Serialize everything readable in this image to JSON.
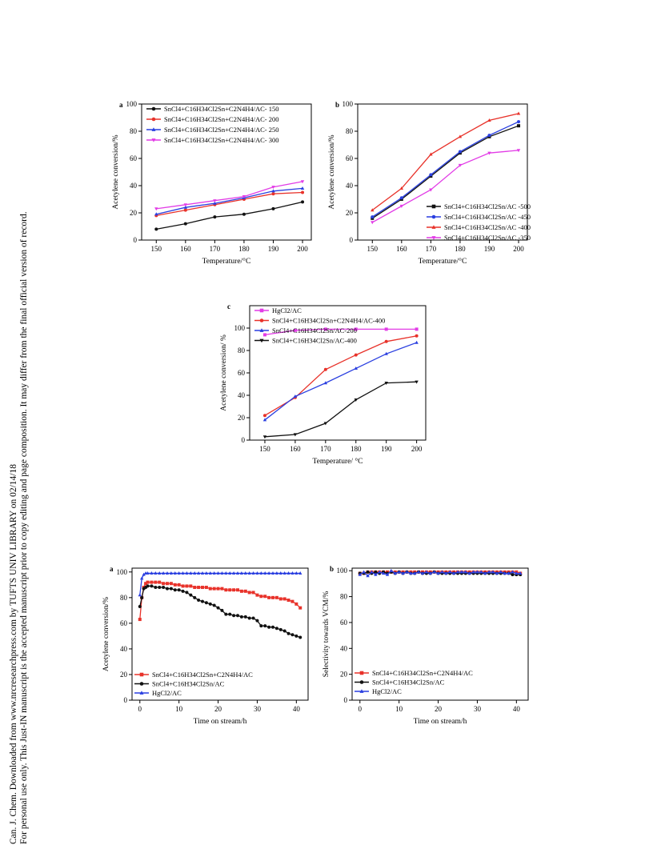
{
  "watermark": {
    "line1": "Can. J. Chem. Downloaded from www.nrcresearchpress.com by TUFTS UNIV LIBRARY on 02/14/18",
    "line2": "For personal use only. This Just-IN manuscript is the accepted manuscript prior to copy editing and page composition. It may differ from the final official version of record."
  },
  "colors": {
    "black": "#111111",
    "red": "#e8322a",
    "blue": "#2a3fe0",
    "magenta": "#e23ce6",
    "navy": "#1b1f8c"
  },
  "chart_data": [
    {
      "id": "fig1a",
      "panel_label": "a",
      "type": "line",
      "xlabel": "Temperature/°C",
      "ylabel": "Acetylene conversion/%",
      "xlim": [
        145,
        203
      ],
      "ylim": [
        0,
        100
      ],
      "xticks": [
        150,
        160,
        170,
        180,
        190,
        200
      ],
      "yticks": [
        0,
        20,
        40,
        60,
        80,
        100
      ],
      "legend_position": "top-left",
      "x": [
        150,
        160,
        170,
        180,
        190,
        200
      ],
      "series": [
        {
          "name": "SnCl4+C16H34Cl2Sn+C2N4H4/AC- 150",
          "color": "#111111",
          "marker": "circle",
          "values": [
            8,
            12,
            17,
            19,
            23,
            28
          ]
        },
        {
          "name": "SnCl4+C16H34Cl2Sn+C2N4H4/AC- 200",
          "color": "#e8322a",
          "marker": "circle",
          "values": [
            18,
            22,
            26,
            30,
            34,
            35
          ]
        },
        {
          "name": "SnCl4+C16H34Cl2Sn+C2N4H4/AC- 250",
          "color": "#2a3fe0",
          "marker": "triangle",
          "values": [
            19,
            24,
            27,
            31,
            36,
            38
          ]
        },
        {
          "name": "SnCl4+C16H34Cl2Sn+C2N4H4/AC- 300",
          "color": "#e23ce6",
          "marker": "triangle-down",
          "values": [
            23,
            26,
            29,
            32,
            39,
            43
          ]
        }
      ]
    },
    {
      "id": "fig1b",
      "panel_label": "b",
      "type": "line",
      "xlabel": "Temperature/°C",
      "ylabel": "Acetylene conversion/%",
      "xlim": [
        145,
        203
      ],
      "ylim": [
        0,
        100
      ],
      "xticks": [
        150,
        160,
        170,
        180,
        190,
        200
      ],
      "yticks": [
        0,
        20,
        40,
        60,
        80,
        100
      ],
      "legend_position": "bottom-right",
      "x": [
        150,
        160,
        170,
        180,
        190,
        200
      ],
      "series": [
        {
          "name": "SnCl4+C16H34Cl2Sn/AC -500",
          "color": "#111111",
          "marker": "square",
          "values": [
            16,
            30,
            47,
            64,
            76,
            84
          ]
        },
        {
          "name": "SnCl4+C16H34Cl2Sn/AC -450",
          "color": "#2a3fe0",
          "marker": "circle",
          "values": [
            17,
            31,
            48,
            65,
            77,
            87
          ]
        },
        {
          "name": "SnCl4+C16H34Cl2Sn/AC -400",
          "color": "#e8322a",
          "marker": "triangle",
          "values": [
            22,
            38,
            63,
            76,
            88,
            93
          ]
        },
        {
          "name": "SnCl4+C16H34Cl2Sn/AC -350",
          "color": "#e23ce6",
          "marker": "triangle-down",
          "values": [
            13,
            25,
            37,
            55,
            64,
            66
          ]
        }
      ]
    },
    {
      "id": "fig1c",
      "panel_label": "c",
      "type": "line",
      "xlabel": "Temperature/ °C",
      "ylabel": "Acetylene conversion/ %",
      "xlim": [
        145,
        203
      ],
      "ylim": [
        0,
        120
      ],
      "xticks": [
        150,
        160,
        170,
        180,
        190,
        200
      ],
      "yticks": [
        0,
        20,
        40,
        60,
        80,
        100
      ],
      "legend_position": "top-left",
      "x": [
        150,
        160,
        170,
        180,
        190,
        200
      ],
      "series": [
        {
          "name": "HgCl2/AC",
          "color": "#e23ce6",
          "marker": "square",
          "values": [
            94,
            98,
            99,
            99,
            99,
            99
          ]
        },
        {
          "name": "SnCl4+C16H34Cl2Sn+C2N4H4/AC-400",
          "color": "#e8322a",
          "marker": "circle",
          "values": [
            22,
            38,
            63,
            76,
            88,
            93
          ]
        },
        {
          "name": "SnCl4+C16H34Cl2Sn/AC-200",
          "color": "#2a3fe0",
          "marker": "triangle",
          "values": [
            18,
            39,
            51,
            64,
            77,
            87
          ]
        },
        {
          "name": "SnCl4+C16H34Cl2Sn/AC-400",
          "color": "#111111",
          "marker": "triangle-down",
          "values": [
            3,
            5,
            15,
            36,
            51,
            52
          ]
        }
      ]
    },
    {
      "id": "fig2a",
      "panel_label": "a",
      "type": "line",
      "xlabel": "Time on stream/h",
      "ylabel": "Acetylene conversion/%",
      "xlim": [
        -2,
        43
      ],
      "ylim": [
        0,
        103
      ],
      "xticks": [
        0,
        10,
        20,
        30,
        40
      ],
      "yticks": [
        0,
        20,
        40,
        60,
        80,
        100
      ],
      "legend_position": "bottom-left",
      "series": [
        {
          "name": "SnCl4+C16H34Cl2Sn+C2N4H4/AC",
          "color": "#e8322a",
          "marker": "square",
          "x": [
            0,
            0.5,
            1,
            1.5,
            2,
            3,
            4,
            5,
            6,
            7,
            8,
            9,
            10,
            11,
            12,
            13,
            14,
            15,
            16,
            17,
            18,
            19,
            20,
            21,
            22,
            23,
            24,
            25,
            26,
            27,
            28,
            29,
            30,
            31,
            32,
            33,
            34,
            35,
            36,
            37,
            38,
            39,
            40,
            41
          ],
          "values": [
            63,
            80,
            88,
            91,
            92,
            92,
            92,
            92,
            91,
            91,
            91,
            90,
            90,
            89,
            89,
            89,
            88,
            88,
            88,
            88,
            87,
            87,
            87,
            87,
            86,
            86,
            86,
            86,
            85,
            85,
            84,
            84,
            82,
            81,
            81,
            80,
            80,
            80,
            79,
            79,
            78,
            77,
            75,
            72
          ]
        },
        {
          "name": "SnCl4+C16H34Cl2Sn/AC",
          "color": "#111111",
          "marker": "circle",
          "x": [
            0,
            0.5,
            1,
            1.5,
            2,
            3,
            4,
            5,
            6,
            7,
            8,
            9,
            10,
            11,
            12,
            13,
            14,
            15,
            16,
            17,
            18,
            19,
            20,
            21,
            22,
            23,
            24,
            25,
            26,
            27,
            28,
            29,
            30,
            31,
            32,
            33,
            34,
            35,
            36,
            37,
            38,
            39,
            40,
            41
          ],
          "values": [
            73,
            80,
            87,
            88,
            89,
            89,
            88,
            88,
            88,
            87,
            87,
            86,
            86,
            85,
            84,
            82,
            80,
            78,
            77,
            76,
            75,
            74,
            72,
            70,
            67,
            67,
            66,
            66,
            65,
            65,
            64,
            64,
            62,
            58,
            58,
            57,
            57,
            56,
            55,
            54,
            52,
            51,
            50,
            49
          ]
        },
        {
          "name": "HgCl2/AC",
          "color": "#2a3fe0",
          "marker": "triangle",
          "x": [
            0,
            0.5,
            1,
            1.5,
            2,
            3,
            4,
            5,
            6,
            7,
            8,
            9,
            10,
            11,
            12,
            13,
            14,
            15,
            16,
            17,
            18,
            19,
            20,
            21,
            22,
            23,
            24,
            25,
            26,
            27,
            28,
            29,
            30,
            31,
            32,
            33,
            34,
            35,
            36,
            37,
            38,
            39,
            40,
            41
          ],
          "values": [
            82,
            95,
            98,
            99,
            99,
            99,
            99,
            99,
            99,
            99,
            99,
            99,
            99,
            99,
            99,
            99,
            99,
            99,
            99,
            99,
            99,
            99,
            99,
            99,
            99,
            99,
            99,
            99,
            99,
            99,
            99,
            99,
            99,
            99,
            99,
            99,
            99,
            99,
            99,
            99,
            99,
            99,
            99,
            99
          ]
        }
      ]
    },
    {
      "id": "fig2b",
      "panel_label": "b",
      "type": "line",
      "xlabel": "Time on stream/h",
      "ylabel": "Selectivity towards VCM/%",
      "xlim": [
        -2,
        43
      ],
      "ylim": [
        0,
        102
      ],
      "xticks": [
        0,
        10,
        20,
        30,
        40
      ],
      "yticks": [
        0,
        20,
        40,
        60,
        80,
        100
      ],
      "legend_position": "bottom-left",
      "series": [
        {
          "name": "SnCl4+C16H34Cl2Sn+C2N4H4/AC",
          "color": "#e8322a",
          "marker": "square",
          "x": [
            0,
            1,
            2,
            3,
            4,
            5,
            6,
            7,
            8,
            9,
            10,
            11,
            12,
            13,
            14,
            15,
            16,
            17,
            18,
            19,
            20,
            21,
            22,
            23,
            24,
            25,
            26,
            27,
            28,
            29,
            30,
            31,
            32,
            33,
            34,
            35,
            36,
            37,
            38,
            39,
            40,
            41
          ],
          "values": [
            98,
            98,
            99,
            99,
            99,
            99,
            99,
            99,
            99,
            99,
            99,
            99,
            99,
            99,
            99,
            99,
            99,
            99,
            99,
            99,
            99,
            99,
            99,
            99,
            99,
            99,
            99,
            99,
            99,
            99,
            99,
            99,
            99,
            99,
            99,
            99,
            99,
            99,
            99,
            99,
            99,
            98
          ]
        },
        {
          "name": "SnCl4+C16H34Cl2Sn/AC",
          "color": "#111111",
          "marker": "circle",
          "x": [
            0,
            1,
            2,
            3,
            4,
            5,
            6,
            7,
            8,
            9,
            10,
            11,
            12,
            13,
            14,
            15,
            16,
            17,
            18,
            19,
            20,
            21,
            22,
            23,
            24,
            25,
            26,
            27,
            28,
            29,
            30,
            31,
            32,
            33,
            34,
            35,
            36,
            37,
            38,
            39,
            40,
            41
          ],
          "values": [
            98,
            98,
            99,
            98,
            99,
            98,
            99,
            98,
            99,
            98,
            99,
            98,
            99,
            98,
            98,
            99,
            98,
            98,
            98,
            99,
            98,
            98,
            98,
            98,
            98,
            98,
            98,
            98,
            98,
            98,
            98,
            98,
            98,
            98,
            98,
            98,
            98,
            98,
            98,
            97,
            97,
            97
          ]
        },
        {
          "name": "HgCl2/AC",
          "color": "#2a3fe0",
          "marker": "triangle",
          "x": [
            0,
            1,
            2,
            3,
            4,
            5,
            6,
            7,
            8,
            9,
            10,
            11,
            12,
            13,
            14,
            15,
            16,
            17,
            18,
            19,
            20,
            21,
            22,
            23,
            24,
            25,
            26,
            27,
            28,
            29,
            30,
            31,
            32,
            33,
            34,
            35,
            36,
            37,
            38,
            39,
            40,
            41
          ],
          "values": [
            97,
            99,
            96,
            99,
            97,
            99,
            98,
            97,
            100,
            98,
            99,
            98,
            99,
            98,
            98,
            99,
            98,
            99,
            98,
            99,
            98,
            99,
            98,
            99,
            98,
            99,
            99,
            99,
            98,
            99,
            99,
            99,
            98,
            99,
            99,
            98,
            99,
            98,
            98,
            99,
            98,
            98
          ]
        }
      ]
    }
  ]
}
